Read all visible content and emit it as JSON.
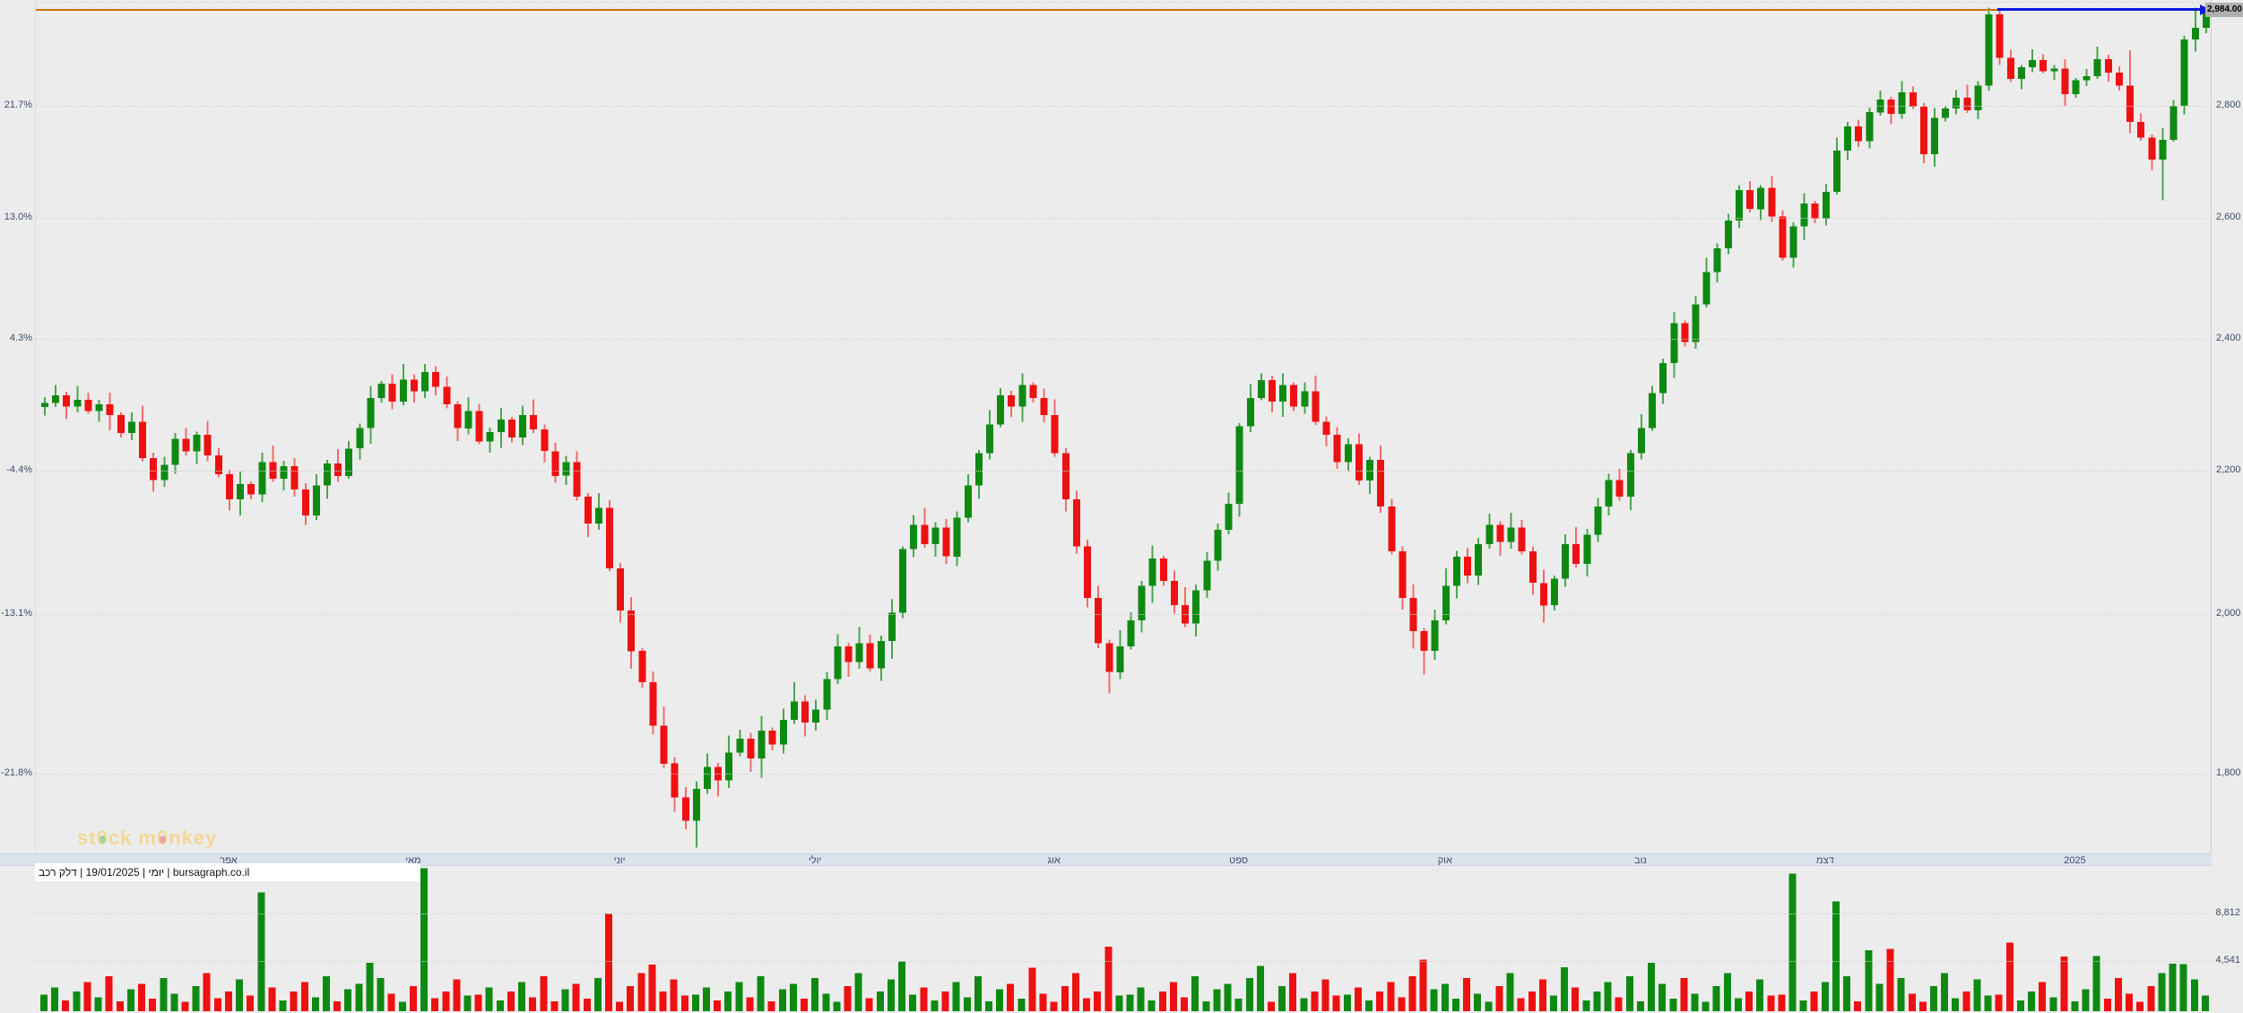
{
  "colors": {
    "background": "#ececec",
    "up": "#0e8a12",
    "down": "#ee1111",
    "up_wick": "#4aa64e",
    "down_wick": "#f26b6b",
    "grid": "#d4d4d4",
    "band_bg": "#dce3ed",
    "axis_text": "#3d4d6b",
    "orange_line": "#cc7000",
    "blue_line": "#0d18e0",
    "tag_bg": "#b0b0b0",
    "tag_text": "#000000",
    "watermark": "#f3d894"
  },
  "watermark": {
    "p1": "st",
    "z1": "0",
    "p2": "ck m",
    "z2": "0",
    "p3": "nkey"
  },
  "chart_data": {
    "type": "candlestick",
    "instrument": "דלק רכב",
    "timeframe_label": "יומי",
    "date_label": "19/01/2025",
    "source_label": "bursagraph.co.il",
    "info_line": "יומי | 19/01/2025 | דלק רכב | bursagraph.co.il",
    "last_price": 2984.0,
    "last_price_label": "2,984.00",
    "scale": "log",
    "price_ticks": [
      {
        "price": 3000,
        "label": "",
        "percent_label": ""
      },
      {
        "price": 2800,
        "label": "2,800",
        "percent_label": "21.7%"
      },
      {
        "price": 2600,
        "label": "2,600",
        "percent_label": "13.0%"
      },
      {
        "price": 2400,
        "label": "2,400",
        "percent_label": "4.3%"
      },
      {
        "price": 2200,
        "label": "2,200",
        "percent_label": "-4.4%"
      },
      {
        "price": 2000,
        "label": "2,000",
        "percent_label": "-13.1%"
      },
      {
        "price": 1800,
        "label": "1,800",
        "percent_label": "-21.8%"
      }
    ],
    "x_axis": {
      "months": [
        {
          "label": "אפר",
          "index": 17
        },
        {
          "label": "מאי",
          "index": 34
        },
        {
          "label": "יוני",
          "index": 53
        },
        {
          "label": "יולי",
          "index": 71
        },
        {
          "label": "אוג",
          "index": 93
        },
        {
          "label": "ספט",
          "index": 110
        },
        {
          "label": "אוק",
          "index": 129
        },
        {
          "label": "נוב",
          "index": 147
        },
        {
          "label": "דצמ",
          "index": 164
        },
        {
          "label": "2025",
          "index": 187
        }
      ]
    },
    "annotations": {
      "orange_line_price": 2984,
      "trendline": {
        "price": 2984,
        "start_index": 180,
        "label": "2,984.00"
      }
    },
    "volume_ticks": [
      {
        "value": 8812,
        "label": "8,812"
      },
      {
        "value": 4541,
        "label": "4,541"
      }
    ],
    "candles": {
      "first_open": 2294,
      "closes": [
        2300,
        2312,
        2295,
        2305,
        2288,
        2298,
        2282,
        2255,
        2272,
        2218,
        2186,
        2208,
        2246,
        2228,
        2252,
        2222,
        2194,
        2158,
        2180,
        2165,
        2212,
        2188,
        2206,
        2172,
        2135,
        2178,
        2210,
        2192,
        2232,
        2262,
        2308,
        2330,
        2302,
        2336,
        2318,
        2348,
        2325,
        2298,
        2262,
        2288,
        2242,
        2256,
        2275,
        2248,
        2282,
        2260,
        2228,
        2192,
        2212,
        2162,
        2124,
        2146,
        2062,
        2005,
        1952,
        1912,
        1858,
        1812,
        1772,
        1745,
        1782,
        1808,
        1792,
        1825,
        1842,
        1818,
        1852,
        1835,
        1865,
        1888,
        1862,
        1878,
        1916,
        1958,
        1938,
        1962,
        1930,
        1965,
        2002,
        2088,
        2122,
        2095,
        2118,
        2078,
        2132,
        2178,
        2225,
        2268,
        2312,
        2295,
        2328,
        2308,
        2282,
        2225,
        2158,
        2092,
        2022,
        1962,
        1925,
        1958,
        1992,
        2038,
        2075,
        2045,
        2012,
        1988,
        2032,
        2072,
        2115,
        2152,
        2265,
        2308,
        2335,
        2302,
        2328,
        2295,
        2318,
        2272,
        2252,
        2212,
        2238,
        2185,
        2215,
        2148,
        2085,
        2022,
        1978,
        1952,
        1992,
        2038,
        2078,
        2052,
        2095,
        2122,
        2098,
        2118,
        2085,
        2042,
        2012,
        2048,
        2095,
        2068,
        2108,
        2148,
        2186,
        2162,
        2225,
        2262,
        2315,
        2362,
        2425,
        2395,
        2455,
        2508,
        2548,
        2595,
        2648,
        2615,
        2652,
        2602,
        2532,
        2585,
        2625,
        2598,
        2645,
        2718,
        2762,
        2735,
        2788,
        2812,
        2785,
        2825,
        2798,
        2712,
        2778,
        2795,
        2815,
        2792,
        2838,
        2975,
        2890,
        2850,
        2872,
        2886,
        2865,
        2870,
        2822,
        2848,
        2855,
        2888,
        2862,
        2838,
        2770,
        2742,
        2702,
        2738,
        2800,
        2926,
        2948,
        2984
      ],
      "wick_up_pattern": [
        9,
        16,
        5,
        21,
        11,
        7,
        18,
        4,
        14,
        24,
        8,
        12
      ],
      "wick_dn_pattern": [
        13,
        6,
        19,
        9,
        4,
        16,
        23,
        7,
        11,
        5,
        17,
        10
      ],
      "wick_overrides": {
        "60": {
          "dn": 31
        },
        "98": {
          "dn": 27
        },
        "127": {
          "dn": 30
        },
        "179": {
          "up": 13
        },
        "180": {
          "up": 9
        },
        "192": {
          "up": 67,
          "dn": 20
        },
        "195": {
          "dn": 72
        },
        "198": {
          "up": 40,
          "dn": 24
        },
        "199": {
          "up": 5,
          "dn": 10
        }
      },
      "volume_pattern": [
        1480,
        2150,
        960,
        1780,
        2620,
        1240,
        3150,
        880,
        1980,
        2480,
        1120,
        2980,
        1560,
        840,
        2280,
        3420,
        1180,
        1760,
        2850,
        1420
      ],
      "volume_overrides": {
        "20": 10700,
        "30": 4350,
        "35": 12900,
        "52": 8800,
        "56": 4200,
        "79": 4480,
        "91": 3900,
        "98": 5800,
        "112": 4100,
        "127": 4650,
        "140": 3950,
        "148": 4380,
        "161": 12400,
        "165": 9900,
        "168": 5480,
        "170": 5620,
        "181": 6200,
        "186": 4950,
        "189": 4980,
        "196": 4300,
        "197": 4250
      }
    }
  }
}
